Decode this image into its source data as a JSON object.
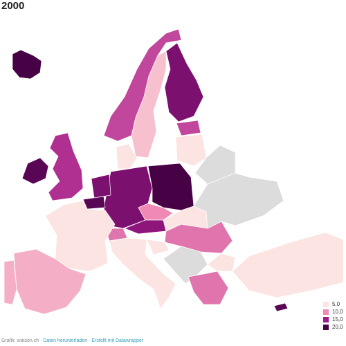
{
  "chart_data": {
    "type": "choropleth",
    "title": "2000",
    "values": [
      20,
      19,
      14,
      13,
      7,
      17,
      13,
      4,
      4,
      17,
      17,
      19,
      20,
      10,
      16,
      11,
      4,
      8,
      8,
      5,
      11,
      5,
      5,
      null,
      null,
      null,
      11,
      5,
      3,
      19
    ],
    "legend": {
      "ticks": [
        {
          "value": 5,
          "label": "5,0"
        },
        {
          "value": 10,
          "label": "10,0"
        },
        {
          "value": 15,
          "label": "15,0"
        },
        {
          "value": 20,
          "label": "20,0"
        }
      ],
      "colors": [
        "#fbe4e1",
        "#f08ab4",
        "#a01a8a",
        "#470246"
      ]
    },
    "missing_color": "#dcdcdc"
  },
  "footer": {
    "source": "Grafik: watson.ch",
    "download": "Daten herunterladen",
    "made_with": "Erstellt mit Datawrapper"
  }
}
